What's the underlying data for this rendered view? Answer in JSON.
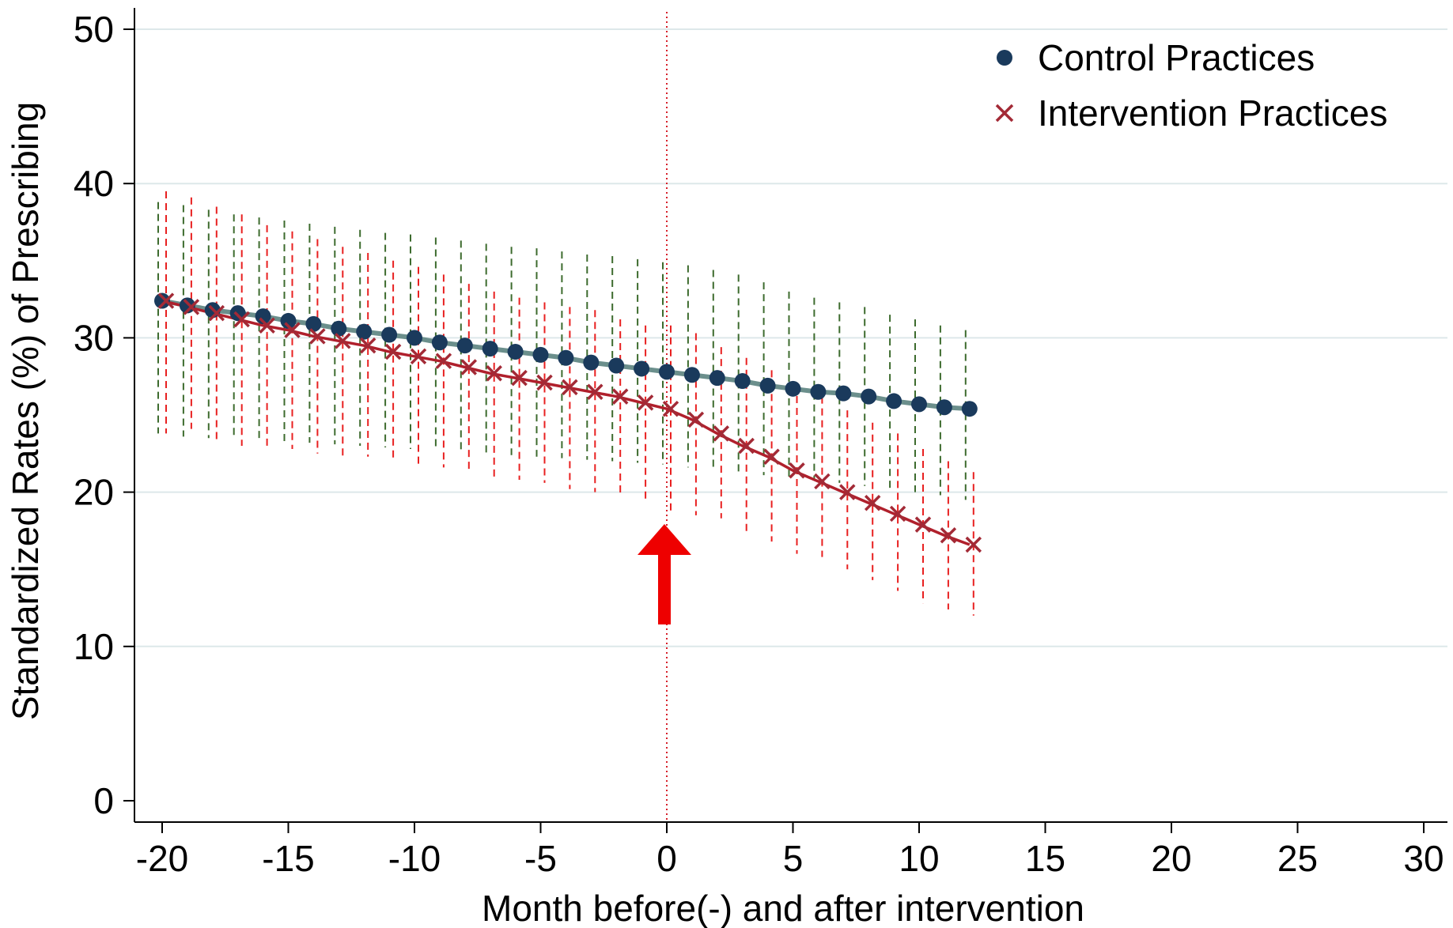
{
  "chart_data": {
    "type": "line",
    "title": "",
    "xlabel": "Month before(-) and after intervention",
    "ylabel": "Standardized Rates (%) of Prescribing",
    "xlim": [
      -20,
      30
    ],
    "ylim": [
      0,
      50
    ],
    "x_ticks": [
      -20,
      -15,
      -10,
      -5,
      0,
      5,
      10,
      15,
      20,
      25,
      30
    ],
    "y_ticks": [
      0,
      10,
      20,
      30,
      40,
      50
    ],
    "grid": "horizontal",
    "legend_position": "top-right",
    "intervention_month": 0,
    "annotation": "red upward arrow below intervention line",
    "x": [
      -20,
      -19,
      -18,
      -17,
      -16,
      -15,
      -14,
      -13,
      -12,
      -11,
      -10,
      -9,
      -8,
      -7,
      -6,
      -5,
      -4,
      -3,
      -2,
      -1,
      0,
      1,
      2,
      3,
      4,
      5,
      6,
      7,
      8,
      9,
      10,
      11,
      12
    ],
    "series": [
      {
        "name": "Control Practices",
        "color": "#1a3a5c",
        "line_color": "#6b8f8c",
        "ci_color": "#3d6b2e",
        "marker": "circle",
        "values": [
          32.4,
          32.1,
          31.8,
          31.6,
          31.4,
          31.1,
          30.9,
          30.6,
          30.4,
          30.2,
          30.0,
          29.7,
          29.5,
          29.3,
          29.1,
          28.9,
          28.7,
          28.4,
          28.2,
          28.0,
          27.8,
          27.6,
          27.4,
          27.2,
          26.9,
          26.7,
          26.5,
          26.4,
          26.2,
          25.9,
          25.7,
          25.5,
          25.4
        ],
        "ci_lower": [
          23.8,
          23.6,
          23.5,
          23.4,
          23.3,
          23.3,
          23.2,
          23.1,
          23.0,
          22.9,
          22.8,
          22.7,
          22.6,
          22.5,
          22.4,
          22.3,
          22.2,
          22.1,
          22.0,
          21.9,
          21.8,
          21.6,
          21.5,
          21.3,
          21.1,
          20.9,
          20.8,
          20.6,
          20.4,
          20.2,
          20.0,
          19.8,
          19.5
        ],
        "ci_upper": [
          38.8,
          38.6,
          38.3,
          38.0,
          37.8,
          37.6,
          37.4,
          37.2,
          37.0,
          36.8,
          36.7,
          36.5,
          36.3,
          36.1,
          35.9,
          35.8,
          35.6,
          35.4,
          35.3,
          35.1,
          34.9,
          34.7,
          34.4,
          34.1,
          33.6,
          33.0,
          32.6,
          32.3,
          32.0,
          31.5,
          31.2,
          30.8,
          30.5
        ]
      },
      {
        "name": "Intervention Practices",
        "color": "#a32a36",
        "line_color": "#b0202c",
        "ci_color": "#e82020",
        "marker": "x",
        "values": [
          32.4,
          32.0,
          31.6,
          31.2,
          30.8,
          30.5,
          30.1,
          29.8,
          29.5,
          29.1,
          28.8,
          28.5,
          28.1,
          27.7,
          27.4,
          27.1,
          26.8,
          26.5,
          26.2,
          25.8,
          25.4,
          24.7,
          23.8,
          23.0,
          22.3,
          21.4,
          20.7,
          20.0,
          19.3,
          18.6,
          17.9,
          17.2,
          16.6
        ],
        "ci_lower": [
          23.8,
          24.1,
          23.4,
          23.0,
          23.0,
          22.8,
          22.5,
          22.3,
          22.3,
          22.0,
          21.8,
          21.6,
          21.3,
          21.0,
          20.8,
          20.6,
          20.2,
          20.0,
          19.8,
          19.5,
          18.6,
          18.5,
          18.3,
          17.3,
          16.8,
          16.0,
          15.8,
          15.0,
          14.3,
          13.6,
          12.8,
          12.4,
          12.0
        ],
        "ci_upper": [
          39.5,
          39.1,
          38.5,
          38.0,
          37.3,
          36.9,
          36.4,
          35.9,
          35.5,
          35.0,
          34.6,
          34.1,
          33.5,
          33.0,
          32.6,
          32.3,
          32.0,
          31.8,
          31.2,
          30.8,
          30.8,
          30.3,
          29.4,
          28.7,
          27.9,
          27.0,
          26.2,
          25.3,
          24.5,
          23.8,
          22.8,
          22.0,
          21.3
        ]
      }
    ]
  }
}
